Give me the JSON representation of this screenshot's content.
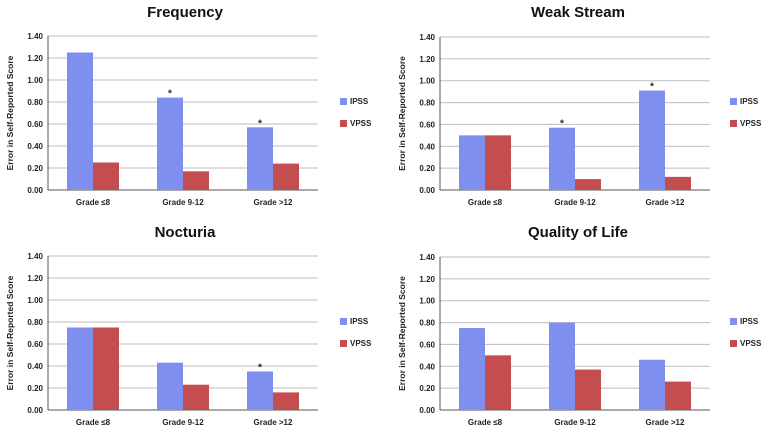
{
  "colors": {
    "ipss": "#7f8ff0",
    "vpss": "#c44d4f",
    "grid": "#bdbdbd",
    "axis": "#555555"
  },
  "chart_data": [
    {
      "type": "bar",
      "title": "Frequency",
      "ylabel": "Error in Self-Reported Score",
      "ylim": [
        0,
        1.4
      ],
      "yticks": [
        "0.00",
        "0.20",
        "0.40",
        "0.60",
        "0.80",
        "1.00",
        "1.20",
        "1.40"
      ],
      "categories": [
        "Grade ≤8",
        "Grade 9-12",
        "Grade >12"
      ],
      "series": [
        {
          "name": "IPSS",
          "values": [
            1.25,
            0.84,
            0.57
          ]
        },
        {
          "name": "VPSS",
          "values": [
            0.25,
            0.17,
            0.24
          ]
        }
      ],
      "annotations": [
        {
          "category": 1,
          "text": "*"
        },
        {
          "category": 2,
          "text": "*"
        }
      ],
      "legend": "right"
    },
    {
      "type": "bar",
      "title": "Weak Stream",
      "ylabel": "Error in Self-Reported Score",
      "ylim": [
        0,
        1.4
      ],
      "yticks": [
        "0.00",
        "0.20",
        "0.40",
        "0.60",
        "0.80",
        "1.00",
        "1.20",
        "1.40"
      ],
      "categories": [
        "Grade ≤8",
        "Grade 9-12",
        "Grade >12"
      ],
      "series": [
        {
          "name": "IPSS",
          "values": [
            0.5,
            0.57,
            0.91
          ]
        },
        {
          "name": "VPSS",
          "values": [
            0.5,
            0.1,
            0.12
          ]
        }
      ],
      "annotations": [
        {
          "category": 1,
          "text": "*"
        },
        {
          "category": 2,
          "text": "*"
        }
      ],
      "legend": "right"
    },
    {
      "type": "bar",
      "title": "Nocturia",
      "ylabel": "Error in Self-Reported Score",
      "ylim": [
        0,
        1.4
      ],
      "yticks": [
        "0.00",
        "0.20",
        "0.40",
        "0.60",
        "0.80",
        "1.00",
        "1.20",
        "1.40"
      ],
      "categories": [
        "Grade ≤8",
        "Grade 9-12",
        "Grade >12"
      ],
      "series": [
        {
          "name": "IPSS",
          "values": [
            0.75,
            0.43,
            0.35
          ]
        },
        {
          "name": "VPSS",
          "values": [
            0.75,
            0.23,
            0.16
          ]
        }
      ],
      "annotations": [
        {
          "category": 2,
          "text": "*"
        }
      ],
      "legend": "right"
    },
    {
      "type": "bar",
      "title": "Quality of Life",
      "ylabel": "Error in Self-Reported Score",
      "ylim": [
        0,
        1.4
      ],
      "yticks": [
        "0.00",
        "0.20",
        "0.40",
        "0.60",
        "0.80",
        "1.00",
        "1.20",
        "1.40"
      ],
      "categories": [
        "Grade ≤8",
        "Grade 9-12",
        "Grade >12"
      ],
      "series": [
        {
          "name": "IPSS",
          "values": [
            0.75,
            0.8,
            0.46
          ]
        },
        {
          "name": "VPSS",
          "values": [
            0.5,
            0.37,
            0.26
          ]
        }
      ],
      "annotations": [],
      "legend": "right"
    }
  ]
}
